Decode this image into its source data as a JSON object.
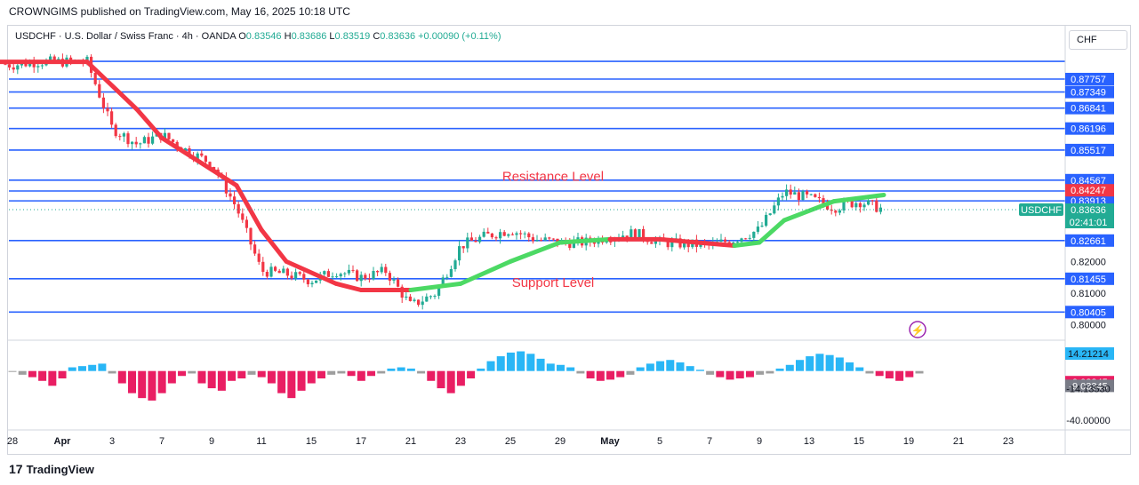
{
  "header": {
    "published_by": "CROWNGIMS published on TradingView.com, May 16, 2025 10:18 UTC"
  },
  "legend": {
    "symbol": "USDCHF · U.S. Dollar / Swiss Franc · 4h · OANDA",
    "o_label": "O",
    "o": "0.83546",
    "h_label": "H",
    "h": "0.83686",
    "l_label": "L",
    "l": "0.83519",
    "c_label": "C",
    "c": "0.83636",
    "change": "+0.00090 (+0.11%)"
  },
  "currency_button": "CHF",
  "brand": "TradingView",
  "colors": {
    "up": "#22ab94",
    "down": "#f23645",
    "level_line": "#2962ff",
    "ma_down": "#f23645",
    "ma_up": "#4cd964",
    "hist_pos": "#29b6f6",
    "hist_neg": "#e91e63",
    "hist_neutral": "#9e9e9e"
  },
  "chart_data": {
    "type": "candlestick",
    "symbol": "USDCHF",
    "timeframe": "4h",
    "x_tick_labels": [
      "28",
      "Apr",
      "3",
      "7",
      "9",
      "11",
      "15",
      "17",
      "21",
      "23",
      "25",
      "29",
      "May",
      "5",
      "7",
      "9",
      "13",
      "15",
      "19",
      "21",
      "23"
    ],
    "y_tick_labels": [
      "0.80000",
      "0.81000",
      "0.82000"
    ],
    "ylim": [
      0.796,
      0.8885
    ],
    "horizontal_levels": [
      0.88316,
      0.87757,
      0.87349,
      0.86841,
      0.86196,
      0.85517,
      0.84567,
      0.84225,
      0.83913,
      0.82661,
      0.81455,
      0.80405
    ],
    "level_labels": [
      "0.87757",
      "0.87349",
      "0.86841",
      "0.86196",
      "0.85517",
      "0.84567",
      "0.84225",
      "0.83913",
      "0.82661",
      "0.81455",
      "0.80405"
    ],
    "price_badges": [
      {
        "label": "0.84247",
        "value": 0.84247,
        "color": "#f23645"
      },
      {
        "label": "USDCHF",
        "value": 0.83636,
        "color": "#22ab94",
        "extra": "0.83636",
        "sub": "02:41:01"
      }
    ],
    "annotations": [
      {
        "text": "Resistance Level",
        "x_date": "Apr 29",
        "value": 0.8455
      },
      {
        "text": "Support Level",
        "x_date": "Apr 29",
        "value": 0.812
      }
    ],
    "price_path": [
      [
        "Mar 27",
        0.883
      ],
      [
        "Mar 28",
        0.882
      ],
      [
        "Mar 31",
        0.883
      ],
      [
        "Apr 1",
        0.883
      ],
      [
        "Apr 2",
        0.883
      ],
      [
        "Apr 3",
        0.862
      ],
      [
        "Apr 4",
        0.857
      ],
      [
        "Apr 7",
        0.86
      ],
      [
        "Apr 8",
        0.855
      ],
      [
        "Apr 9",
        0.851
      ],
      [
        "Apr 10",
        0.837
      ],
      [
        "Apr 11",
        0.817
      ],
      [
        "Apr 14",
        0.816
      ],
      [
        "Apr 15",
        0.814
      ],
      [
        "Apr 16",
        0.817
      ],
      [
        "Apr 17",
        0.815
      ],
      [
        "Apr 18",
        0.817
      ],
      [
        "Apr 21",
        0.806
      ],
      [
        "Apr 22",
        0.81
      ],
      [
        "Apr 23",
        0.825
      ],
      [
        "Apr 24",
        0.828
      ],
      [
        "Apr 25",
        0.83
      ],
      [
        "Apr 28",
        0.827
      ],
      [
        "Apr 29",
        0.826
      ],
      [
        "Apr 30",
        0.826
      ],
      [
        "May 1",
        0.828
      ],
      [
        "May 2",
        0.829
      ],
      [
        "May 5",
        0.826
      ],
      [
        "May 6",
        0.8255
      ],
      [
        "May 7",
        0.825
      ],
      [
        "May 8",
        0.827
      ],
      [
        "May 9",
        0.83
      ],
      [
        "May 12",
        0.842
      ],
      [
        "May 13",
        0.84
      ],
      [
        "May 14",
        0.837
      ],
      [
        "May 15",
        0.839
      ],
      [
        "May 16",
        0.8364
      ]
    ],
    "moving_average": [
      [
        "Mar 27",
        0.883
      ],
      [
        "Apr 2",
        0.883
      ],
      [
        "Apr 4",
        0.868
      ],
      [
        "Apr 7",
        0.859
      ],
      [
        "Apr 9",
        0.849
      ],
      [
        "Apr 10",
        0.844
      ],
      [
        "Apr 11",
        0.83
      ],
      [
        "Apr 14",
        0.82
      ],
      [
        "Apr 16",
        0.813
      ],
      [
        "Apr 17",
        0.811
      ],
      [
        "Apr 21",
        0.811
      ],
      [
        "Apr 23",
        0.813
      ],
      [
        "Apr 25",
        0.82
      ],
      [
        "Apr 29",
        0.826
      ],
      [
        "May 1",
        0.827
      ],
      [
        "May 5",
        0.827
      ],
      [
        "May 8",
        0.825
      ],
      [
        "May 9",
        0.826
      ],
      [
        "May 12",
        0.833
      ],
      [
        "May 14",
        0.839
      ],
      [
        "May 16",
        0.841
      ]
    ],
    "oscillator": {
      "tick_labels": [
        "14.21214",
        "-9.03345",
        "-9.03345",
        "-14.13530",
        "-40.00000"
      ],
      "ylim": [
        -45,
        20
      ],
      "values": [
        0,
        -3,
        -5,
        -8,
        -12,
        -6,
        3,
        4,
        5,
        6,
        -2,
        -10,
        -18,
        -22,
        -24,
        -18,
        -10,
        -4,
        -2,
        -10,
        -14,
        -16,
        -8,
        -6,
        -3,
        -5,
        -10,
        -18,
        -22,
        -16,
        -10,
        -6,
        -3,
        -2,
        -4,
        -8,
        -4,
        -2,
        2,
        3,
        2,
        -2,
        -8,
        -14,
        -18,
        -12,
        -6,
        2,
        8,
        12,
        15,
        16,
        14,
        10,
        6,
        5,
        3,
        -2,
        -6,
        -8,
        -7,
        -5,
        -3,
        3,
        6,
        8,
        9,
        7,
        4,
        1,
        -3,
        -5,
        -7,
        -6,
        -5,
        -3,
        -2,
        2,
        5,
        9,
        12,
        14,
        13,
        11,
        7,
        3,
        -2,
        -4,
        -6,
        -8,
        -5,
        -2
      ]
    }
  }
}
